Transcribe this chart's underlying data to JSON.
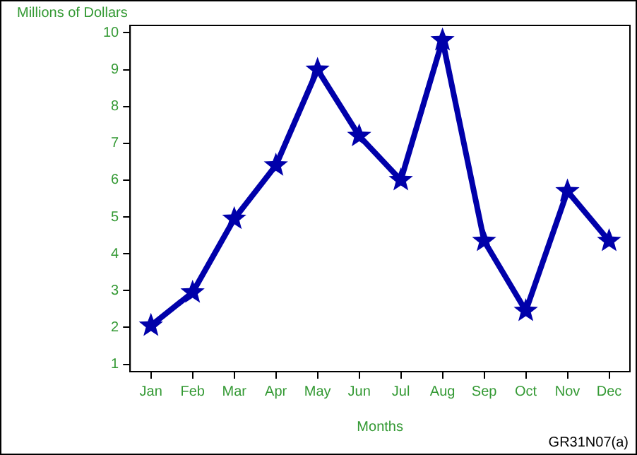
{
  "chart_data": {
    "type": "line",
    "xlabel": "Months",
    "ylabel": "Millions of Dollars",
    "categories": [
      "Jan",
      "Feb",
      "Mar",
      "Apr",
      "May",
      "Jun",
      "Jul",
      "Aug",
      "Sep",
      "Oct",
      "Nov",
      "Dec"
    ],
    "series": [
      {
        "color": "#0000aa",
        "values": [
          2.05,
          2.95,
          4.95,
          6.4,
          9.0,
          7.2,
          6.0,
          9.8,
          4.35,
          2.45,
          5.7,
          4.35
        ]
      }
    ],
    "ylim": [
      0.8,
      10.2
    ],
    "yticks": [
      1,
      2,
      3,
      4,
      5,
      6,
      7,
      8,
      9,
      10
    ],
    "grid": false,
    "legend": false,
    "marker": "star",
    "line_style": "solid",
    "annotations": [
      "GR31N07(a)"
    ]
  }
}
